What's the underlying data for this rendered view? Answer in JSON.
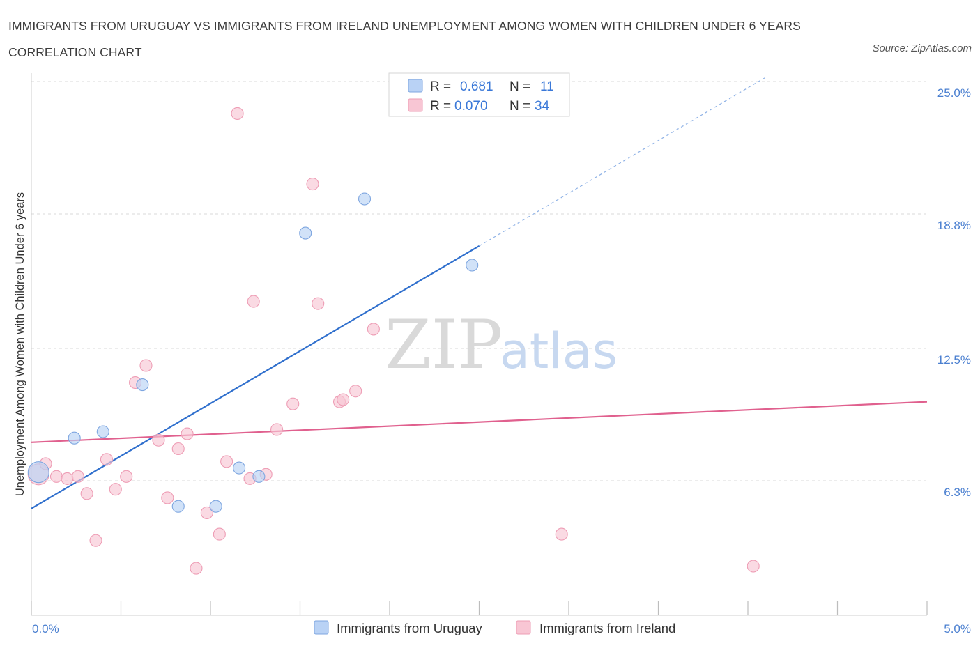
{
  "title": "IMMIGRANTS FROM URUGUAY VS IMMIGRANTS FROM IRELAND UNEMPLOYMENT AMONG WOMEN WITH CHILDREN UNDER 6 YEARS CORRELATION CHART",
  "source": "Source: ZipAtlas.com",
  "watermark": {
    "zip": "ZIP",
    "atlas": "atlas"
  },
  "legend": {
    "r_label": "R =",
    "n_label": "N =",
    "series0_r": "0.681",
    "series0_n": "11",
    "series1_r": "0.070",
    "series1_n": "34"
  },
  "colors": {
    "uruguay_fill": "#b9d2f5",
    "uruguay_stroke": "#7ea6e0",
    "uruguay_line": "#2f6fcd",
    "ireland_fill": "#f8c6d4",
    "ireland_stroke": "#ee9db5",
    "ireland_line": "#e0608e",
    "tick_text": "#4a7fd0",
    "grid": "#d8d8d8"
  },
  "chart_data": {
    "type": "scatter",
    "title": "IMMIGRANTS FROM URUGUAY VS IMMIGRANTS FROM IRELAND UNEMPLOYMENT AMONG WOMEN WITH CHILDREN UNDER 6 YEARS CORRELATION CHART",
    "xlabel": "",
    "ylabel": "Unemployment Among Women with Children Under 6 years",
    "xlim": [
      0,
      5
    ],
    "ylim": [
      0,
      25
    ],
    "x_tick_labels": [
      "0.0%",
      "5.0%"
    ],
    "y_ticks": [
      6.3,
      12.5,
      18.8,
      25.0
    ],
    "y_tick_labels": [
      "6.3%",
      "12.5%",
      "18.8%",
      "25.0%"
    ],
    "legend_position": "top-center",
    "series": [
      {
        "name": "Immigrants from Uruguay",
        "R": 0.681,
        "N": 11,
        "points": [
          {
            "x": 0.04,
            "y": 6.7,
            "size": "large"
          },
          {
            "x": 0.24,
            "y": 8.3
          },
          {
            "x": 0.4,
            "y": 8.6
          },
          {
            "x": 0.62,
            "y": 10.8
          },
          {
            "x": 0.82,
            "y": 5.1
          },
          {
            "x": 1.03,
            "y": 5.1
          },
          {
            "x": 1.16,
            "y": 6.9
          },
          {
            "x": 1.27,
            "y": 6.5
          },
          {
            "x": 1.53,
            "y": 17.9
          },
          {
            "x": 1.86,
            "y": 19.5
          },
          {
            "x": 2.46,
            "y": 16.4
          }
        ],
        "trend": {
          "x_start": 0.0,
          "y_start": 5.0,
          "x_solid_end": 2.5,
          "y_solid_end": 17.3,
          "x_dashed_end": 4.1,
          "y_dashed_end": 25.2
        }
      },
      {
        "name": "Immigrants from Ireland",
        "R": 0.07,
        "N": 34,
        "points": [
          {
            "x": 0.04,
            "y": 6.6,
            "size": "large"
          },
          {
            "x": 0.08,
            "y": 7.1
          },
          {
            "x": 0.14,
            "y": 6.5
          },
          {
            "x": 0.2,
            "y": 6.4
          },
          {
            "x": 0.26,
            "y": 6.5
          },
          {
            "x": 0.31,
            "y": 5.7
          },
          {
            "x": 0.36,
            "y": 3.5
          },
          {
            "x": 0.42,
            "y": 7.3
          },
          {
            "x": 0.47,
            "y": 5.9
          },
          {
            "x": 0.53,
            "y": 6.5
          },
          {
            "x": 0.58,
            "y": 10.9
          },
          {
            "x": 0.64,
            "y": 11.7
          },
          {
            "x": 0.71,
            "y": 8.2
          },
          {
            "x": 0.76,
            "y": 5.5
          },
          {
            "x": 0.82,
            "y": 7.8
          },
          {
            "x": 0.87,
            "y": 8.5
          },
          {
            "x": 0.92,
            "y": 2.2
          },
          {
            "x": 0.98,
            "y": 4.8
          },
          {
            "x": 1.05,
            "y": 3.8
          },
          {
            "x": 1.09,
            "y": 7.2
          },
          {
            "x": 1.15,
            "y": 23.5
          },
          {
            "x": 1.22,
            "y": 6.4
          },
          {
            "x": 1.24,
            "y": 14.7
          },
          {
            "x": 1.31,
            "y": 6.6
          },
          {
            "x": 1.37,
            "y": 8.7
          },
          {
            "x": 1.46,
            "y": 9.9
          },
          {
            "x": 1.57,
            "y": 20.2
          },
          {
            "x": 1.6,
            "y": 14.6
          },
          {
            "x": 1.72,
            "y": 10.0
          },
          {
            "x": 1.74,
            "y": 10.1
          },
          {
            "x": 1.81,
            "y": 10.5
          },
          {
            "x": 1.91,
            "y": 13.4
          },
          {
            "x": 2.96,
            "y": 3.8
          },
          {
            "x": 4.03,
            "y": 2.3
          }
        ],
        "trend": {
          "x_start": 0.0,
          "y_start": 8.1,
          "x_end": 5.0,
          "y_end": 10.0
        }
      }
    ]
  }
}
